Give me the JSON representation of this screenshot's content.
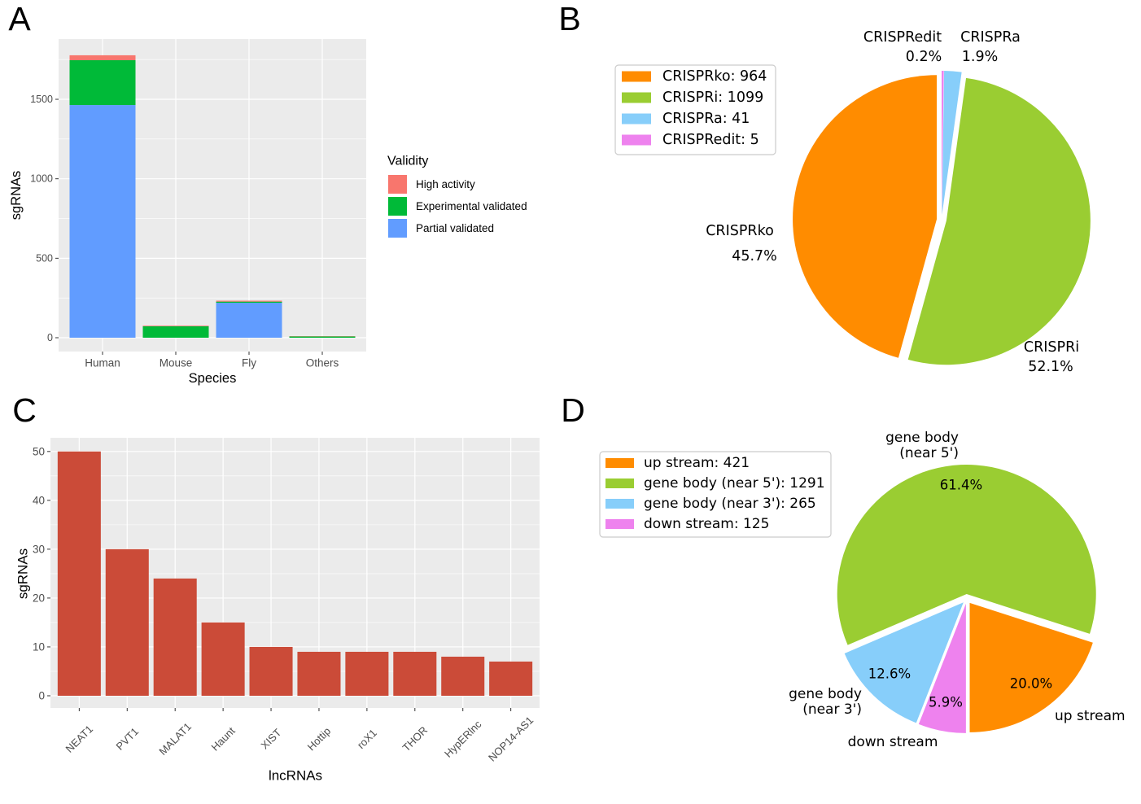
{
  "chart_data": [
    {
      "panel": "A",
      "type": "bar",
      "stacked": true,
      "categories": [
        "Human",
        "Mouse",
        "Fly",
        "Others"
      ],
      "series": [
        {
          "name": "High activity",
          "color": "#F8766D",
          "values": [
            31,
            4,
            6,
            2
          ]
        },
        {
          "name": "Experimental validated",
          "color": "#00BA38",
          "values": [
            282,
            72,
            7,
            8
          ]
        },
        {
          "name": "Partial validated",
          "color": "#619CFF",
          "values": [
            1464,
            0,
            220,
            0
          ]
        }
      ],
      "xlabel": "Species",
      "ylabel": "sgRNAs",
      "yticks": [
        0,
        500,
        1000,
        1500
      ],
      "ylim": [
        -87,
        1879
      ],
      "legend_title": "Validity",
      "legend_position": "right",
      "grid": true
    },
    {
      "panel": "B",
      "type": "pie",
      "slices": [
        {
          "value": 964,
          "color": "#FF8C00",
          "label_lines": [
            "CRISPRko"
          ],
          "pct_label": "45.7%",
          "legend_label": "CRISPRko: 964"
        },
        {
          "value": 1099,
          "color": "#9ACD32",
          "label_lines": [
            "CRISPRi"
          ],
          "pct_label": "52.1%",
          "legend_label": "CRISPRi: 1099"
        },
        {
          "value": 41,
          "color": "#87CEFA",
          "label_lines": [
            "CRISPRa"
          ],
          "pct_label": "1.9%",
          "legend_label": "CRISPRa: 41"
        },
        {
          "value": 5,
          "color": "#EE82EE",
          "label_lines": [
            "CRISPRedit"
          ],
          "pct_label": "0.2%",
          "legend_label": "CRISPRedit: 5"
        }
      ],
      "legend_position": "upper left"
    },
    {
      "panel": "C",
      "type": "bar",
      "categories": [
        "NEAT1",
        "PVT1",
        "MALAT1",
        "Haunt",
        "XIST",
        "Hottip",
        "roX1",
        "THOR",
        "HypERlnc",
        "NOP14-AS1"
      ],
      "values": [
        50,
        30,
        24,
        15,
        10,
        9,
        9,
        9,
        8,
        7
      ],
      "color": "#CB4B38",
      "xlabel": "lncRNAs",
      "ylabel": "sgRNAs",
      "yticks": [
        0,
        10,
        20,
        30,
        40,
        50
      ],
      "ylim": [
        -2.5,
        52.8
      ],
      "grid": true
    },
    {
      "panel": "D",
      "type": "pie",
      "slices": [
        {
          "value": 421,
          "color": "#FF8C00",
          "label_lines": [
            "up stream"
          ],
          "pct_label": "20.0%",
          "legend_label": "up stream: 421"
        },
        {
          "value": 1291,
          "color": "#9ACD32",
          "label_lines": [
            "gene body",
            "(near 5')"
          ],
          "pct_label": "61.4%",
          "legend_label": "gene body (near 5'): 1291"
        },
        {
          "value": 265,
          "color": "#87CEFA",
          "label_lines": [
            "gene body",
            "(near 3')"
          ],
          "pct_label": "12.6%",
          "legend_label": "gene body (near 3'): 265"
        },
        {
          "value": 125,
          "color": "#EE82EE",
          "label_lines": [
            "down stream"
          ],
          "pct_label": "5.9%",
          "legend_label": "down stream: 125"
        }
      ],
      "legend_position": "upper left"
    }
  ]
}
